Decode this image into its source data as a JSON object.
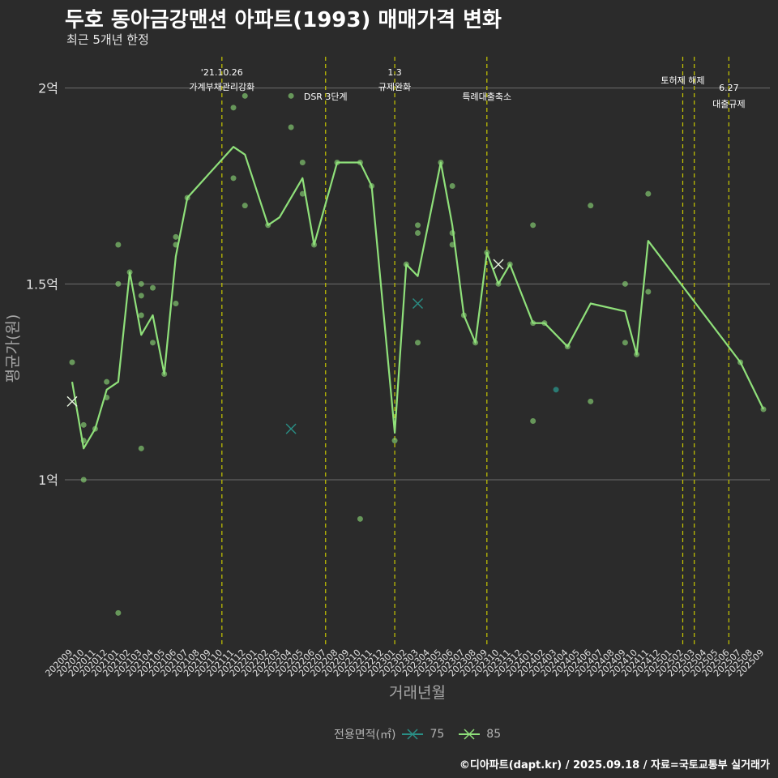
{
  "title": "두호 동아금강맨션 아파트(1993) 매매가격 변화",
  "subtitle": "최근 5개년 한정",
  "caption": "©디아파트(dapt.kr) / 2025.09.18 / 자료=국토교통부 실거래가",
  "colors": {
    "background": "#2b2b2b",
    "grid": "#6e6e6e",
    "vline": "#c8c800",
    "s85": "#8fe07a",
    "s75": "#2a8f86",
    "text": "#e0e0e0",
    "axisTitle": "#a6a6a6"
  },
  "chart_data": {
    "type": "line",
    "xlabel": "거래년월",
    "ylabel": "평균가(원)",
    "ylim": [
      0.58,
      2.08
    ],
    "y_ticks": [
      {
        "value": 1.0,
        "label": "1억"
      },
      {
        "value": 1.5,
        "label": "1.5억"
      },
      {
        "value": 2.0,
        "label": "2억"
      }
    ],
    "categories": [
      "202009",
      "202010",
      "202011",
      "202012",
      "202101",
      "202102",
      "202103",
      "202104",
      "202105",
      "202106",
      "202107",
      "202108",
      "202109",
      "202110",
      "202111",
      "202112",
      "202201",
      "202202",
      "202203",
      "202204",
      "202205",
      "202206",
      "202207",
      "202208",
      "202209",
      "202210",
      "202211",
      "202212",
      "202301",
      "202302",
      "202303",
      "202304",
      "202305",
      "202306",
      "202307",
      "202308",
      "202309",
      "202310",
      "202311",
      "202312",
      "202401",
      "202402",
      "202403",
      "202404",
      "202405",
      "202406",
      "202407",
      "202408",
      "202409",
      "202410",
      "202411",
      "202412",
      "202501",
      "202502",
      "202503",
      "202504",
      "202505",
      "202506",
      "202507",
      "202508",
      "202509"
    ],
    "legend": {
      "title": "전용면적(㎡)",
      "entries": [
        "75",
        "85"
      ]
    },
    "series": [
      {
        "name": "85",
        "line": [
          [
            0,
            1.25
          ],
          [
            1,
            1.08
          ],
          [
            2,
            1.13
          ],
          [
            3,
            1.23
          ],
          [
            4,
            1.25
          ],
          [
            5,
            1.53
          ],
          [
            6,
            1.37
          ],
          [
            7,
            1.42
          ],
          [
            8,
            1.27
          ],
          [
            9,
            1.57
          ],
          [
            10,
            1.72
          ],
          [
            14,
            1.85
          ],
          [
            15,
            1.83
          ],
          [
            17,
            1.65
          ],
          [
            18,
            1.67
          ],
          [
            20,
            1.77
          ],
          [
            21,
            1.6
          ],
          [
            23,
            1.81
          ],
          [
            25,
            1.81
          ],
          [
            26,
            1.75
          ],
          [
            28,
            1.12
          ],
          [
            29,
            1.55
          ],
          [
            30,
            1.52
          ],
          [
            32,
            1.81
          ],
          [
            33,
            1.65
          ],
          [
            34,
            1.42
          ],
          [
            35,
            1.35
          ],
          [
            36,
            1.58
          ],
          [
            37,
            1.5
          ],
          [
            38,
            1.55
          ],
          [
            40,
            1.4
          ],
          [
            41,
            1.4
          ],
          [
            43,
            1.34
          ],
          [
            45,
            1.45
          ],
          [
            48,
            1.43
          ],
          [
            49,
            1.32
          ],
          [
            50,
            1.61
          ],
          [
            58,
            1.3
          ],
          [
            60,
            1.18
          ]
        ]
      },
      {
        "name": "75",
        "line": [
          [
            30,
            1.45
          ]
        ]
      }
    ],
    "points": [
      {
        "x": 0,
        "y": 1.3
      },
      {
        "x": 1,
        "y": 1.14
      },
      {
        "x": 1,
        "y": 1.1
      },
      {
        "x": 1,
        "y": 1.0
      },
      {
        "x": 2,
        "y": 1.13
      },
      {
        "x": 3,
        "y": 1.25
      },
      {
        "x": 3,
        "y": 1.21
      },
      {
        "x": 4,
        "y": 1.6
      },
      {
        "x": 4,
        "y": 1.5
      },
      {
        "x": 5,
        "y": 1.53
      },
      {
        "x": 6,
        "y": 1.5
      },
      {
        "x": 6,
        "y": 1.47
      },
      {
        "x": 6,
        "y": 1.42
      },
      {
        "x": 6,
        "y": 1.08
      },
      {
        "x": 4,
        "y": 0.66
      },
      {
        "x": 7,
        "y": 1.49
      },
      {
        "x": 7,
        "y": 1.35
      },
      {
        "x": 8,
        "y": 1.27
      },
      {
        "x": 9,
        "y": 1.62
      },
      {
        "x": 9,
        "y": 1.6
      },
      {
        "x": 9,
        "y": 1.45
      },
      {
        "x": 10,
        "y": 1.72
      },
      {
        "x": 14,
        "y": 1.95
      },
      {
        "x": 14,
        "y": 1.77
      },
      {
        "x": 15,
        "y": 1.98
      },
      {
        "x": 15,
        "y": 1.7
      },
      {
        "x": 17,
        "y": 1.65
      },
      {
        "x": 19,
        "y": 1.98
      },
      {
        "x": 19,
        "y": 1.9
      },
      {
        "x": 20,
        "y": 1.81
      },
      {
        "x": 20,
        "y": 1.73
      },
      {
        "x": 21,
        "y": 1.6
      },
      {
        "x": 23,
        "y": 1.81
      },
      {
        "x": 25,
        "y": 1.81
      },
      {
        "x": 25,
        "y": 0.9
      },
      {
        "x": 26,
        "y": 1.75
      },
      {
        "x": 28,
        "y": 1.1
      },
      {
        "x": 29,
        "y": 1.55
      },
      {
        "x": 30,
        "y": 1.65
      },
      {
        "x": 30,
        "y": 1.63
      },
      {
        "x": 30,
        "y": 1.35
      },
      {
        "x": 32,
        "y": 1.81
      },
      {
        "x": 33,
        "y": 1.75
      },
      {
        "x": 33,
        "y": 1.63
      },
      {
        "x": 33,
        "y": 1.6
      },
      {
        "x": 34,
        "y": 1.42
      },
      {
        "x": 35,
        "y": 1.35
      },
      {
        "x": 36,
        "y": 1.58
      },
      {
        "x": 37,
        "y": 1.5
      },
      {
        "x": 38,
        "y": 1.55
      },
      {
        "x": 40,
        "y": 1.65
      },
      {
        "x": 40,
        "y": 1.4
      },
      {
        "x": 40,
        "y": 1.15
      },
      {
        "x": 41,
        "y": 1.4
      },
      {
        "x": 43,
        "y": 1.34
      },
      {
        "x": 45,
        "y": 1.7
      },
      {
        "x": 45,
        "y": 1.2
      },
      {
        "x": 48,
        "y": 1.5
      },
      {
        "x": 48,
        "y": 1.35
      },
      {
        "x": 49,
        "y": 1.32
      },
      {
        "x": 50,
        "y": 1.73
      },
      {
        "x": 50,
        "y": 1.48
      },
      {
        "x": 58,
        "y": 1.3
      },
      {
        "x": 60,
        "y": 1.18
      }
    ],
    "points_75": [
      {
        "x": 42,
        "y": 1.23
      }
    ],
    "markers_x": [
      {
        "x": 0,
        "y": 1.2,
        "series": "85"
      },
      {
        "x": 19,
        "y": 1.13,
        "series": "75"
      },
      {
        "x": 30,
        "y": 1.45,
        "series": "75"
      },
      {
        "x": 37,
        "y": 1.55,
        "series": "85"
      }
    ],
    "events": [
      {
        "x": 13.0,
        "line1": "'21.10.26",
        "line2": "가계부채관리강화",
        "row": "top"
      },
      {
        "x": 22.0,
        "line1": "",
        "line2": "DSR 3단계",
        "row": "mid"
      },
      {
        "x": 28.0,
        "line1": "1.3",
        "line2": "규제완화",
        "row": "top"
      },
      {
        "x": 36.0,
        "line1": "",
        "line2": "특례대출축소",
        "row": "mid"
      },
      {
        "x": 53.0,
        "line1": "",
        "line2": "토허제 해제",
        "row": "high"
      },
      {
        "x": 54.0,
        "line1": "",
        "line2": "",
        "row": "none"
      },
      {
        "x": 57.0,
        "line1": "6.27",
        "line2": "대출규제",
        "row": "low"
      }
    ]
  }
}
